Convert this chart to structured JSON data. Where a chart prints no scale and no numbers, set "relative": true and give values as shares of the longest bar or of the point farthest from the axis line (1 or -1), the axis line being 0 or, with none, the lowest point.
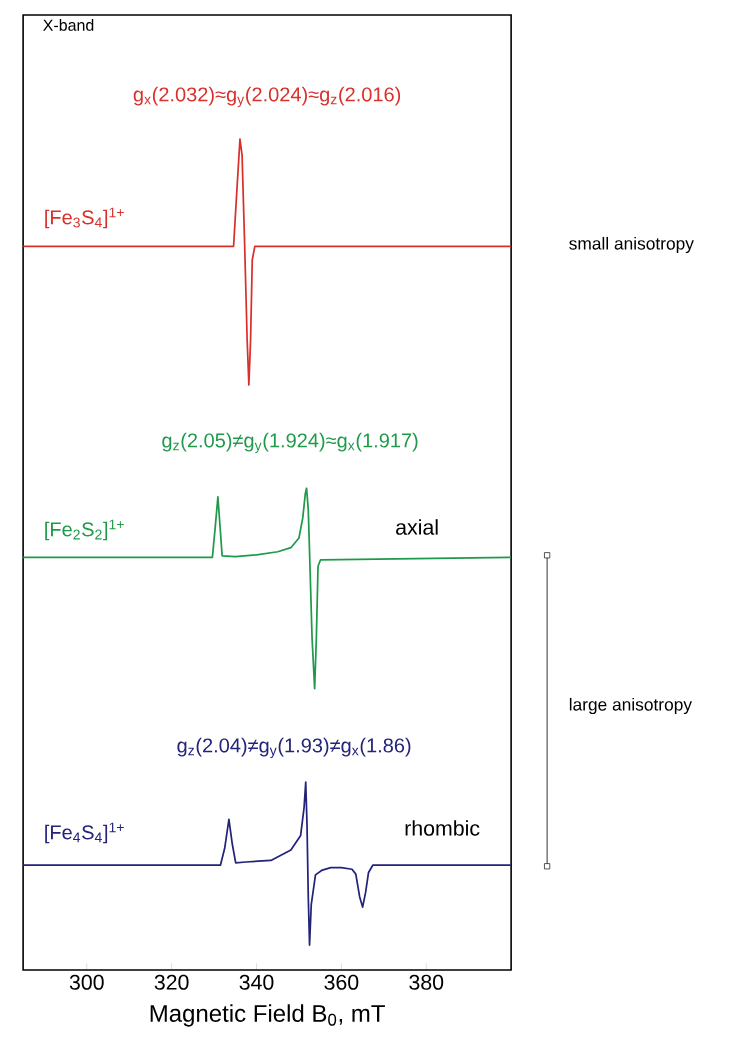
{
  "chart_data": {
    "type": "line",
    "relative": true,
    "xlabel": "Magnetic Field B$_{0}$, mT",
    "xlim": [
      285,
      400
    ],
    "xticks": [
      300,
      320,
      340,
      360,
      380
    ],
    "annotations": [
      "X-band",
      "g$_{x}$(2.032)≈g$_{y}$(2.024)≈g$_{z}$(2.016)",
      "g$_{z}$(2.05)≠g$_{y}$(1.924)≈g$_{x}$(1.917)",
      "g$_{z}$(2.04)≠g$_{y}$(1.93)≠g$_{x}$(1.86)",
      "axial",
      "rhombic",
      "small anisotropy",
      "large anisotropy"
    ],
    "series": [
      {
        "name": "[Fe$_{3}$S$_{4}$]$^{1+}$",
        "color": "#d9302c",
        "x": [
          285,
          334.6,
          335.3,
          336.1,
          336.6,
          337.2,
          337.8,
          338.2,
          338.6,
          339.0,
          339.6,
          400
        ],
        "values": [
          0.867,
          0.867,
          0.93,
          1.0,
          0.98,
          0.87,
          0.75,
          0.695,
          0.75,
          0.85,
          0.867,
          0.867
        ]
      },
      {
        "name": "[Fe$_{2}$S$_{2}$]$^{1+}$",
        "color": "#1f9a4a",
        "x": [
          285,
          329.6,
          330.3,
          330.9,
          331.4,
          331.9,
          335,
          340,
          345,
          348.1,
          350.0,
          350.9,
          351.5,
          351.8,
          352.2,
          352.6,
          353.1,
          353.7,
          354.1,
          354.5,
          355.1,
          400
        ],
        "values": [
          0.481,
          0.481,
          0.52,
          0.556,
          0.52,
          0.483,
          0.482,
          0.484,
          0.488,
          0.493,
          0.505,
          0.53,
          0.56,
          0.567,
          0.54,
          0.47,
          0.38,
          0.318,
          0.38,
          0.47,
          0.478,
          0.481
        ]
      },
      {
        "name": "[Fe$_{4}$S$_{4}$]$^{1+}$",
        "color": "#23237a",
        "x": [
          285,
          331.5,
          332.5,
          333.5,
          334.3,
          335.1,
          337.5,
          343.4,
          348.1,
          350.4,
          351.2,
          351.6,
          351.9,
          352.2,
          352.5,
          352.9,
          353.9,
          355.5,
          357.5,
          360,
          362.5,
          363.4,
          364.3,
          365.0,
          365.7,
          366.4,
          367.4,
          400
        ],
        "values": [
          0.099,
          0.099,
          0.12,
          0.156,
          0.125,
          0.102,
          0.103,
          0.105,
          0.118,
          0.136,
          0.17,
          0.202,
          0.15,
          0.06,
          0.0,
          0.05,
          0.087,
          0.093,
          0.096,
          0.096,
          0.094,
          0.088,
          0.06,
          0.047,
          0.065,
          0.09,
          0.099,
          0.099
        ]
      }
    ]
  }
}
